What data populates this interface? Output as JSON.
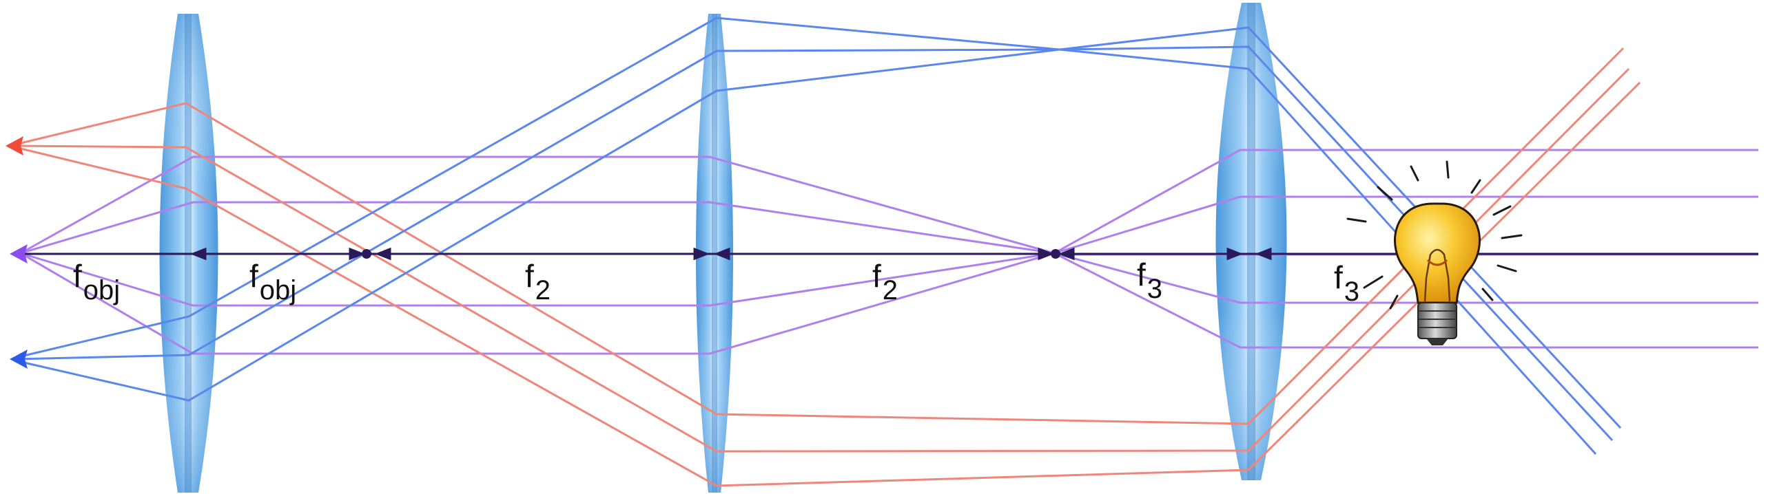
{
  "labels": {
    "fobj_left": {
      "main": "f",
      "sub": "obj"
    },
    "fobj_right": {
      "main": "f",
      "sub": "obj"
    },
    "f2_left": {
      "main": "f",
      "sub": "2"
    },
    "f2_right": {
      "main": "f",
      "sub": "2"
    },
    "f3_left": {
      "main": "f",
      "sub": "3"
    },
    "f3_right": {
      "main": "f",
      "sub": "3"
    }
  },
  "colors": {
    "red_ray": "#f0857a",
    "blue_ray": "#5b86ec",
    "purple_ray": "#b07fee",
    "axis": "#2a1a5a",
    "lens_fill": "#5aa8e8",
    "red_arrow": "#f04a3a",
    "purple_arrow": "#8a4ef0",
    "blue_arrow": "#2a5ce8",
    "bulb": "#f5b820"
  },
  "elements": {
    "light_source_icon": "light-bulb-icon",
    "lens_count": 3
  }
}
